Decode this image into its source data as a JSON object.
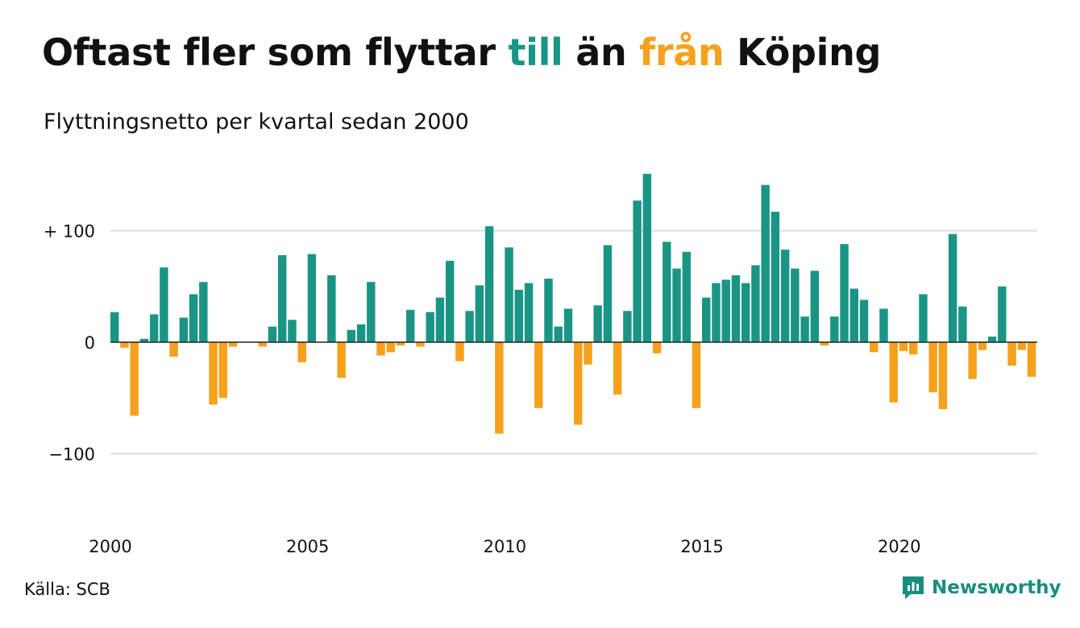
{
  "title": {
    "part1": "Oftast fler som flyttar ",
    "word_till": "till",
    "part2": " än ",
    "word_fran": "från",
    "part3": " Köping"
  },
  "subtitle": "Flyttningsnetto per kvartal sedan 2000",
  "source": "Källa: SCB",
  "brand": "Newsworthy",
  "colors": {
    "positive": "#1a9585",
    "negative": "#f5a11c",
    "gridline": "#dddddd",
    "zeroline": "#222222"
  },
  "chart_data": {
    "type": "bar",
    "title": "Oftast fler som flyttar till än från Köping",
    "subtitle": "Flyttningsnetto per kvartal sedan 2000",
    "y_ticks": [
      {
        "value": 100,
        "label": "+ 100"
      },
      {
        "value": 0,
        "label": "0"
      },
      {
        "value": -100,
        "label": "−100"
      }
    ],
    "x_ticks": [
      {
        "value": 2000,
        "label": "2000"
      },
      {
        "value": 2005,
        "label": "2005"
      },
      {
        "value": 2010,
        "label": "2010"
      },
      {
        "value": 2015,
        "label": "2015"
      },
      {
        "value": 2020,
        "label": "2020"
      }
    ],
    "ylim": [
      -165,
      155
    ],
    "grid": true,
    "start_year": 2000,
    "periods_per_year": 4,
    "series": [
      {
        "values": [
          27,
          -5,
          -66,
          3,
          25,
          67,
          -13,
          22,
          43,
          54,
          -56,
          -50,
          -4,
          0,
          0,
          -4,
          14,
          78,
          20,
          -18,
          79,
          0,
          60,
          -32,
          11,
          16,
          54,
          -12,
          -9,
          -3,
          29,
          -4,
          27,
          40,
          73,
          -17,
          28,
          51,
          104,
          -82,
          85,
          47,
          53,
          -59,
          57,
          14,
          30,
          -74,
          -20,
          33,
          87,
          -47,
          28,
          127,
          151,
          -10,
          90,
          66,
          81,
          -59,
          40,
          53,
          56,
          60,
          53,
          69,
          141,
          117,
          83,
          66,
          23,
          64,
          -3,
          23,
          88,
          48,
          38,
          -9,
          30,
          -54,
          -8,
          -11,
          43,
          -45,
          -60,
          97,
          32,
          -33,
          -7,
          5,
          50,
          -21,
          -7,
          -31
        ]
      }
    ]
  }
}
